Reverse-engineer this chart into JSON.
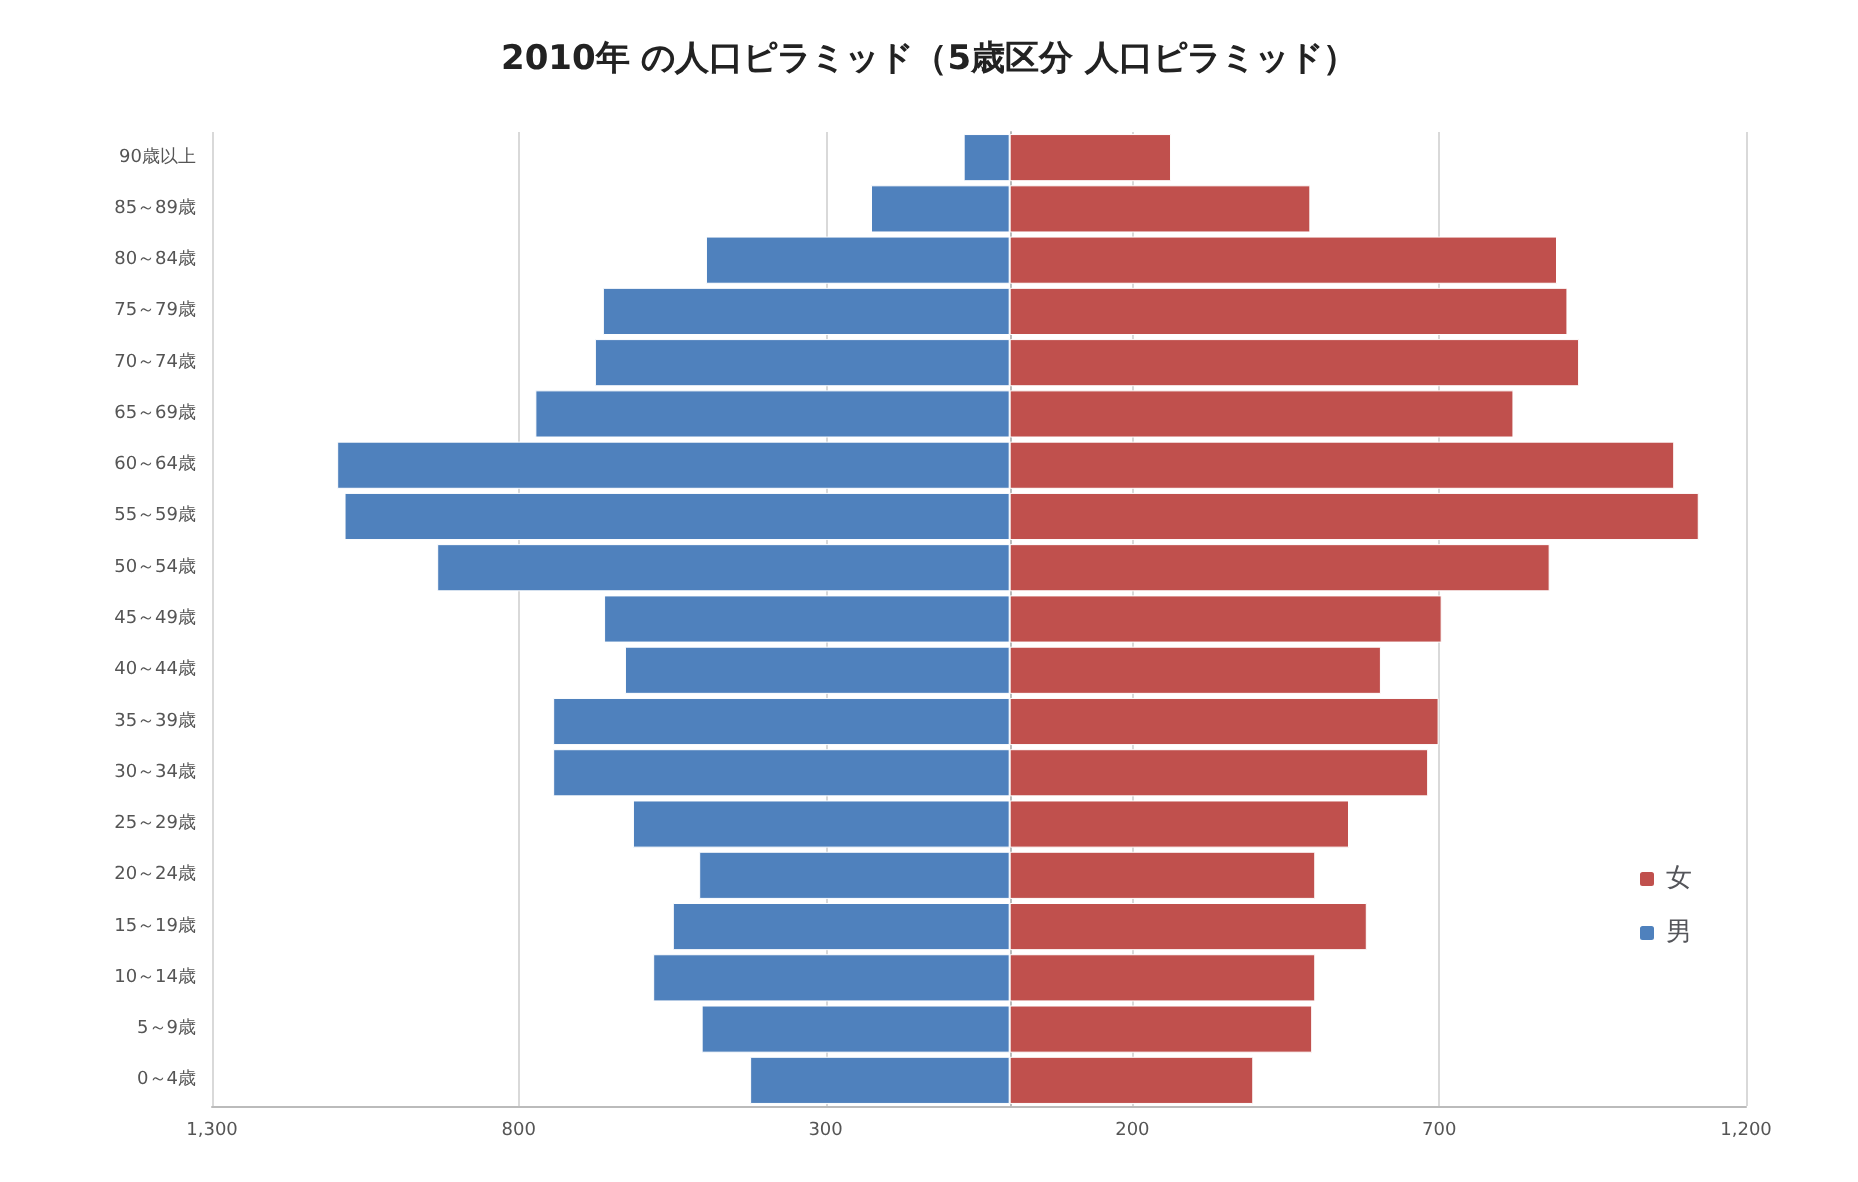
{
  "chart_data": {
    "type": "bar",
    "orientation": "horizontal",
    "title": "2010年 の人口ピラミッド（5歳区分 人口ピラミッド）",
    "categories": [
      "90歳以上",
      "85～89歳",
      "80～84歳",
      "75～79歳",
      "70～74歳",
      "65～69歳",
      "60～64歳",
      "55～59歳",
      "50～54歳",
      "45～49歳",
      "40～44歳",
      "35～39歳",
      "30～34歳",
      "25～29歳",
      "20～24歳",
      "15～19歳",
      "10～14歳",
      "5～9歳",
      "0～4歳"
    ],
    "series": [
      {
        "name": "女",
        "color": "#c0504d",
        "values": [
          263,
          490,
          892,
          909,
          928,
          821,
          1083,
          1123,
          880,
          704,
          605,
          699,
          682,
          553,
          498,
          582,
          498,
          493,
          397
        ]
      },
      {
        "name": "男",
        "color": "#4f81bd",
        "values": [
          -75,
          -226,
          -495,
          -663,
          -676,
          -773,
          -1096,
          -1084,
          -933,
          -661,
          -627,
          -744,
          -744,
          -614,
          -506,
          -549,
          -581,
          -502,
          -423
        ]
      }
    ],
    "xlim": [
      -1300,
      1200
    ],
    "xticks": [
      {
        "value": -1300,
        "label": "1,300"
      },
      {
        "value": -800,
        "label": "800"
      },
      {
        "value": -300,
        "label": "300"
      },
      200,
      700,
      {
        "value": 1200,
        "label": "1,200"
      }
    ],
    "stacked": true,
    "grid": "x",
    "legend": "right"
  }
}
